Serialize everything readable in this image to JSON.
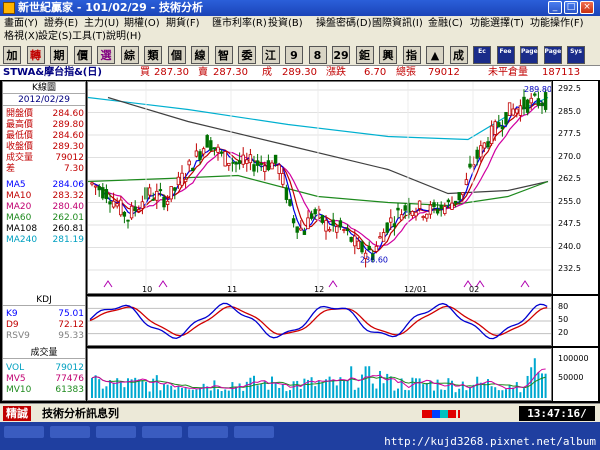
{
  "window": {
    "title": "新世紀贏家 - 101/02/29 - 技術分析"
  },
  "menu": {
    "items": [
      "畫面(Y)",
      "證券(E)",
      "主力(U)",
      "期權(O)",
      "期貨(F)",
      "匯市利率(R)",
      "投資(B)",
      "操盤密碼(D)",
      "國際資訊(I)",
      "金融(C)",
      "功能選擇(T)",
      "功能操作(F)"
    ],
    "items2": [
      "格視(X)",
      "設定(S)",
      "工具(T)",
      "說明(H)"
    ]
  },
  "toolbar": {
    "buttons": [
      "加",
      "轉",
      "期",
      "價",
      "選",
      "綜",
      "類",
      "個",
      "線",
      "智",
      "委",
      "江",
      "9",
      "8",
      "29",
      "鉅",
      "興",
      "指",
      "▲",
      "成",
      "Ec",
      "Fee",
      "Page",
      "Page",
      "Sys"
    ]
  },
  "info": {
    "symbol": "STWA&摩台指&(日)",
    "buy_label": "買",
    "buy_value": "287.30",
    "sell_label": "賣",
    "sell_value": "287.30",
    "deal_label": "成",
    "deal_value": "289.30",
    "change_label": "漲跌",
    "change_value": "6.70",
    "vol_label": "總張",
    "vol_value": "79012",
    "oi_label": "未平倉量",
    "oi_value": "187113"
  },
  "leftpanel": {
    "title": "K線圖",
    "date": "2012/02/29",
    "rows": [
      {
        "label": "開盤價",
        "value": "284.60",
        "color": "#c00000"
      },
      {
        "label": "最高價",
        "value": "289.80",
        "color": "#c00000"
      },
      {
        "label": "最低價",
        "value": "284.60",
        "color": "#c00000"
      },
      {
        "label": "收盤價",
        "value": "289.30",
        "color": "#c00000"
      },
      {
        "label": "成交量",
        "value": "79012",
        "color": "#c00000"
      },
      {
        "label": "差",
        "value": "7.30",
        "color": "#c00000"
      }
    ],
    "ma": [
      {
        "label": "MA5",
        "value": "284.06",
        "color": "#0000ff"
      },
      {
        "label": "MA10",
        "value": "283.32",
        "color": "#c00000"
      },
      {
        "label": "MA20",
        "value": "280.40",
        "color": "#c00070"
      },
      {
        "label": "MA60",
        "value": "262.01",
        "color": "#1e8a1e"
      },
      {
        "label": "MA108",
        "value": "260.81",
        "color": "#000000"
      },
      {
        "label": "MA240",
        "value": "281.19",
        "color": "#00a0c0"
      }
    ],
    "kd_title": "KDJ",
    "kd": [
      {
        "label": "K9",
        "value": "75.01",
        "color": "#0000ff"
      },
      {
        "label": "D9",
        "value": "72.12",
        "color": "#c00000"
      },
      {
        "label": "RSV9",
        "value": "95.33",
        "color": "#808080"
      }
    ],
    "vol_title": "成交量",
    "vol": [
      {
        "label": "VOL",
        "value": "79012",
        "color": "#00a0c0"
      },
      {
        "label": "MV5",
        "value": "77476",
        "color": "#c00070"
      },
      {
        "label": "MV10",
        "value": "61383",
        "color": "#1e8a1e"
      }
    ]
  },
  "chart_data": [
    {
      "type": "candlestick",
      "price_ticks": [
        "292.5",
        "285.0",
        "277.5",
        "270.0",
        "262.5",
        "255.0",
        "247.5",
        "240.0",
        "232.5"
      ],
      "ylim": [
        232.5,
        292.5
      ],
      "x_labels": [
        "10",
        "11",
        "12",
        "12/01",
        "02"
      ],
      "annotations": {
        "high": "289.80",
        "low": "236.60"
      }
    },
    {
      "type": "line",
      "kd_ticks": [
        "80",
        "50",
        "20"
      ],
      "ylim": [
        0,
        100
      ]
    },
    {
      "type": "bar",
      "vol_ticks": [
        "100000",
        "50000"
      ],
      "ylim": [
        0,
        120000
      ]
    }
  ],
  "status": {
    "badge": "精誠",
    "message": "技術分析訊息列",
    "clock": "13:47:16/"
  },
  "footer": {
    "url": "http://kujd3268.pixnet.net/album"
  }
}
